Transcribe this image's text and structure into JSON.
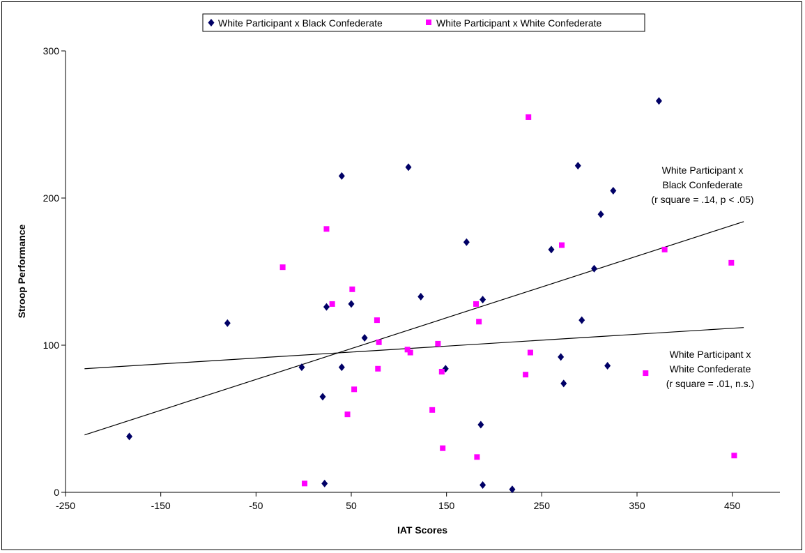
{
  "chart_data": {
    "type": "scatter",
    "title": "",
    "xlabel": "IAT Scores",
    "ylabel": "Stroop Performance",
    "xlim": [
      -250,
      500
    ],
    "ylim": [
      0,
      300
    ],
    "x_ticks": [
      -250,
      -150,
      -50,
      50,
      150,
      250,
      350,
      450
    ],
    "x_tick_labels": [
      "-250",
      "-150",
      "-50",
      "50",
      "150",
      "250",
      "350",
      "450"
    ],
    "y_ticks": [
      0,
      100,
      200,
      300
    ],
    "y_tick_labels": [
      "0",
      "100",
      "200",
      "300"
    ],
    "grid": false,
    "legend_position": "top",
    "series": [
      {
        "name": "White Participant x Black Confederate",
        "marker": "diamond",
        "color": "#000066",
        "points": [
          [
            -183,
            38
          ],
          [
            -80,
            115
          ],
          [
            -2,
            85
          ],
          [
            20,
            65
          ],
          [
            22,
            6
          ],
          [
            24,
            126
          ],
          [
            40,
            215
          ],
          [
            40,
            85
          ],
          [
            50,
            128
          ],
          [
            64,
            105
          ],
          [
            110,
            221
          ],
          [
            123,
            133
          ],
          [
            149,
            84
          ],
          [
            171,
            170
          ],
          [
            186,
            46
          ],
          [
            188,
            131
          ],
          [
            188,
            5
          ],
          [
            219,
            2
          ],
          [
            260,
            165
          ],
          [
            270,
            92
          ],
          [
            273,
            74
          ],
          [
            288,
            222
          ],
          [
            292,
            117
          ],
          [
            305,
            152
          ],
          [
            312,
            189
          ],
          [
            319,
            86
          ],
          [
            325,
            205
          ],
          [
            373,
            266
          ]
        ],
        "trendline": {
          "x": [
            -230,
            462
          ],
          "y": [
            39,
            184
          ]
        }
      },
      {
        "name": "White Participant x White Confederate",
        "marker": "square",
        "color": "#ff00ff",
        "points": [
          [
            -22,
            153
          ],
          [
            1,
            6
          ],
          [
            24,
            179
          ],
          [
            30,
            128
          ],
          [
            46,
            53
          ],
          [
            51,
            138
          ],
          [
            53,
            70
          ],
          [
            77,
            117
          ],
          [
            78,
            84
          ],
          [
            79,
            102
          ],
          [
            109,
            97
          ],
          [
            112,
            95
          ],
          [
            135,
            56
          ],
          [
            141,
            101
          ],
          [
            145,
            82
          ],
          [
            146,
            30
          ],
          [
            181,
            128
          ],
          [
            182,
            24
          ],
          [
            184,
            116
          ],
          [
            233,
            80
          ],
          [
            236,
            255
          ],
          [
            238,
            95
          ],
          [
            271,
            168
          ],
          [
            359,
            81
          ],
          [
            379,
            165
          ],
          [
            449,
            156
          ],
          [
            452,
            25
          ]
        ],
        "trendline": {
          "x": [
            -230,
            462
          ],
          "y": [
            84,
            112
          ]
        }
      }
    ],
    "annotations": [
      {
        "series": "White Participant x Black Confederate",
        "lines": [
          "White Participant x",
          "Black Confederate",
          "(r square = .14, p < .05)"
        ]
      },
      {
        "series": "White Participant x White Confederate",
        "lines": [
          "White Participant x",
          "White Confederate",
          "(r square = .01, n.s.)"
        ]
      }
    ]
  }
}
